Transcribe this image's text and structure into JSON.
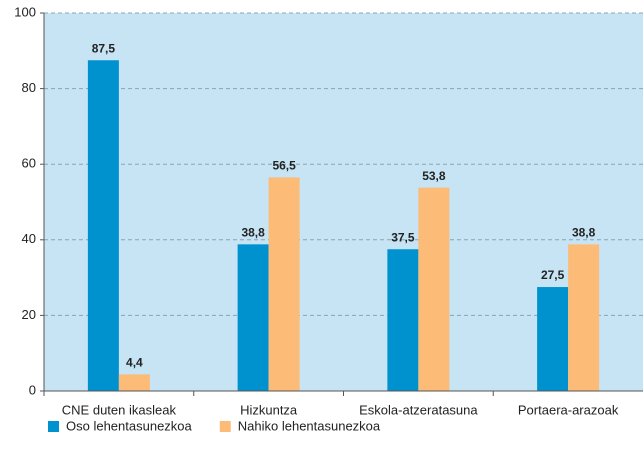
{
  "chart_data": {
    "type": "bar",
    "categories": [
      "CNE duten ikasleak",
      "Hizkuntza",
      "Eskola-atzeratasuna",
      "Portaera-arazoak"
    ],
    "series": [
      {
        "name": "Oso lehentasunezkoa",
        "color": "#0091cf",
        "values": [
          87.5,
          38.8,
          37.5,
          27.5
        ],
        "value_labels": [
          "87,5",
          "38,8",
          "37,5",
          "27,5"
        ]
      },
      {
        "name": "Nahiko lehentasunezkoa",
        "color": "#fdbb78",
        "values": [
          4.4,
          56.5,
          53.8,
          38.8
        ],
        "value_labels": [
          "4,4",
          "56,5",
          "53,8",
          "38,8"
        ]
      }
    ],
    "ylim": [
      0,
      100
    ],
    "yticks": [
      0,
      20,
      40,
      60,
      80,
      100
    ],
    "grid": true,
    "legend": "bottom-left",
    "background": "#c6e4f4"
  }
}
